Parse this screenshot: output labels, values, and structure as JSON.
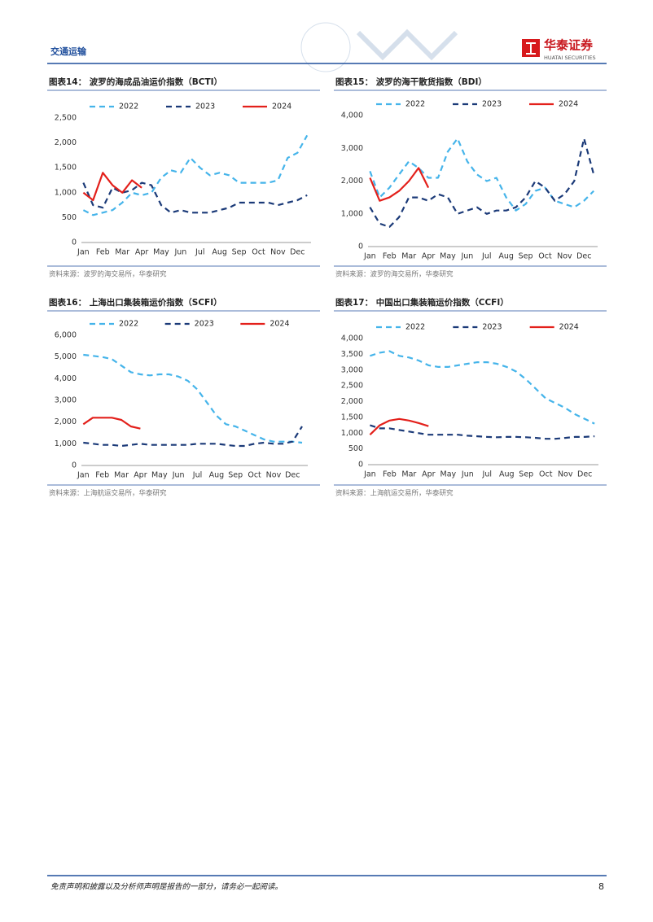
{
  "header": {
    "section": "交通运输",
    "brand": "华泰证券",
    "brand_en": "HUATAI SECURITIES"
  },
  "chart_data": [
    {
      "type": "line",
      "title": "图表14： 波罗的海成品油运价指数（BCTI）",
      "source": "资料来源：波罗的海交易所，华泰研究",
      "x": [
        0,
        0.5,
        1,
        1.5,
        2,
        2.5,
        3,
        3.5,
        4,
        4.5,
        5,
        5.5,
        6,
        6.5,
        7,
        7.5,
        8,
        8.5,
        9,
        9.5,
        10,
        10.5,
        11,
        11.5
      ],
      "xlim": [
        -0.1,
        11.7
      ],
      "xticks": [
        {
          "value": 0,
          "label": "Jan"
        },
        {
          "value": 1,
          "label": "Feb"
        },
        {
          "value": 2,
          "label": "Mar"
        },
        {
          "value": 3,
          "label": "Apr"
        },
        {
          "value": 4,
          "label": "May"
        },
        {
          "value": 5,
          "label": "Jun"
        },
        {
          "value": 6,
          "label": "Jul"
        },
        {
          "value": 7,
          "label": "Aug"
        },
        {
          "value": 8,
          "label": "Sep"
        },
        {
          "value": 9,
          "label": "Oct"
        },
        {
          "value": 10,
          "label": "Nov"
        },
        {
          "value": 11,
          "label": "Dec"
        }
      ],
      "ylim": [
        0,
        2500
      ],
      "yticks": [
        0,
        500,
        {
          "value": 1000,
          "label": "1,000"
        },
        {
          "value": 1500,
          "label": "1,500"
        },
        {
          "value": 2000,
          "label": "2,000"
        },
        {
          "value": 2500,
          "label": "2,500"
        }
      ],
      "series": [
        {
          "name": "2022",
          "color": "#45b4ea",
          "style": "dashed",
          "values": [
            650,
            550,
            600,
            650,
            800,
            1000,
            950,
            1000,
            1300,
            1450,
            1400,
            1700,
            1500,
            1350,
            1400,
            1350,
            1200,
            1200,
            1200,
            1200,
            1250,
            1700,
            1800,
            2150
          ]
        },
        {
          "name": "2023",
          "color": "#1b3a78",
          "style": "dashed",
          "values": [
            1200,
            750,
            700,
            1100,
            1000,
            1050,
            1200,
            1150,
            750,
            600,
            650,
            600,
            600,
            600,
            650,
            700,
            800,
            800,
            800,
            800,
            750,
            800,
            850,
            950
          ]
        },
        {
          "name": "2024",
          "color": "#e3201b",
          "style": "solid",
          "values": [
            1000,
            850,
            1400,
            1150,
            1000,
            1250,
            1100,
            null,
            null,
            null,
            null,
            null,
            null,
            null,
            null,
            null,
            null,
            null,
            null,
            null,
            null,
            null,
            null,
            null
          ]
        }
      ]
    },
    {
      "type": "line",
      "title": "图表15： 波罗的海干散货指数（BDI）",
      "source": "资料来源：波罗的海交易所，华泰研究",
      "x": [
        0,
        0.5,
        1,
        1.5,
        2,
        2.5,
        3,
        3.5,
        4,
        4.5,
        5,
        5.5,
        6,
        6.5,
        7,
        7.5,
        8,
        8.5,
        9,
        9.5,
        10,
        10.5,
        11,
        11.5
      ],
      "xlim": [
        -0.1,
        11.7
      ],
      "xticks": [
        {
          "value": 0,
          "label": "Jan"
        },
        {
          "value": 1,
          "label": "Feb"
        },
        {
          "value": 2,
          "label": "Mar"
        },
        {
          "value": 3,
          "label": "Apr"
        },
        {
          "value": 4,
          "label": "May"
        },
        {
          "value": 5,
          "label": "Jun"
        },
        {
          "value": 6,
          "label": "Jul"
        },
        {
          "value": 7,
          "label": "Aug"
        },
        {
          "value": 8,
          "label": "Sep"
        },
        {
          "value": 9,
          "label": "Oct"
        },
        {
          "value": 10,
          "label": "Nov"
        },
        {
          "value": 11,
          "label": "Dec"
        }
      ],
      "ylim": [
        0,
        4000
      ],
      "yticks": [
        0,
        {
          "value": 1000,
          "label": "1,000"
        },
        {
          "value": 2000,
          "label": "2,000"
        },
        {
          "value": 3000,
          "label": "3,000"
        },
        {
          "value": 4000,
          "label": "4,000"
        }
      ],
      "series": [
        {
          "name": "2022",
          "color": "#45b4ea",
          "style": "dashed",
          "values": [
            2300,
            1500,
            1800,
            2200,
            2600,
            2400,
            2100,
            2100,
            2900,
            3300,
            2600,
            2200,
            2000,
            2100,
            1500,
            1100,
            1300,
            1700,
            1800,
            1400,
            1300,
            1200,
            1400,
            1700
          ]
        },
        {
          "name": "2023",
          "color": "#1b3a78",
          "style": "dashed",
          "values": [
            1200,
            700,
            600,
            900,
            1500,
            1500,
            1400,
            1600,
            1500,
            1000,
            1100,
            1200,
            1000,
            1100,
            1100,
            1200,
            1500,
            2000,
            1800,
            1400,
            1600,
            2000,
            3300,
            2200
          ]
        },
        {
          "name": "2024",
          "color": "#e3201b",
          "style": "solid",
          "values": [
            2100,
            1400,
            1500,
            1700,
            2000,
            2400,
            1800,
            null,
            null,
            null,
            null,
            null,
            null,
            null,
            null,
            null,
            null,
            null,
            null,
            null,
            null,
            null,
            null,
            null
          ]
        }
      ]
    },
    {
      "type": "line",
      "title": "图表16： 上海出口集装箱运价指数（SCFI）",
      "source": "资料来源：上海航运交易所，华泰研究",
      "x": [
        0,
        0.5,
        1,
        1.5,
        2,
        2.5,
        3,
        3.5,
        4,
        4.5,
        5,
        5.5,
        6,
        6.5,
        7,
        7.5,
        8,
        8.5,
        9,
        9.5,
        10,
        10.5,
        11,
        11.5
      ],
      "xlim": [
        -0.1,
        11.8
      ],
      "xticks": [
        {
          "value": 0,
          "label": "Jan"
        },
        {
          "value": 1,
          "label": "Feb"
        },
        {
          "value": 2,
          "label": "Mar"
        },
        {
          "value": 3,
          "label": "Apr"
        },
        {
          "value": 4,
          "label": "May"
        },
        {
          "value": 5,
          "label": "Jun"
        },
        {
          "value": 6,
          "label": "Jul"
        },
        {
          "value": 7,
          "label": "Aug"
        },
        {
          "value": 8,
          "label": "Sep"
        },
        {
          "value": 9,
          "label": "Oct"
        },
        {
          "value": 10,
          "label": "Nov"
        },
        {
          "value": 11,
          "label": "Dec"
        }
      ],
      "ylim": [
        0,
        6000
      ],
      "yticks": [
        0,
        {
          "value": 1000,
          "label": "1,000"
        },
        {
          "value": 2000,
          "label": "2,000"
        },
        {
          "value": 3000,
          "label": "3,000"
        },
        {
          "value": 4000,
          "label": "4,000"
        },
        {
          "value": 5000,
          "label": "5,000"
        },
        {
          "value": 6000,
          "label": "6,000"
        }
      ],
      "series": [
        {
          "name": "2022",
          "color": "#45b4ea",
          "style": "dashed",
          "values": [
            5100,
            5050,
            5000,
            4900,
            4600,
            4300,
            4200,
            4150,
            4200,
            4200,
            4100,
            3900,
            3500,
            2900,
            2300,
            1900,
            1800,
            1600,
            1400,
            1200,
            1100,
            1100,
            1100,
            1050
          ]
        },
        {
          "name": "2023",
          "color": "#1b3a78",
          "style": "dashed",
          "values": [
            1050,
            1000,
            950,
            950,
            900,
            950,
            1000,
            950,
            950,
            950,
            950,
            950,
            1000,
            1000,
            1000,
            950,
            900,
            900,
            1000,
            1050,
            1000,
            1000,
            1100,
            1800
          ]
        },
        {
          "name": "2024",
          "color": "#e3201b",
          "style": "solid",
          "values": [
            1900,
            2200,
            2200,
            2200,
            2100,
            1800,
            1700,
            null,
            null,
            null,
            null,
            null,
            null,
            null,
            null,
            null,
            null,
            null,
            null,
            null,
            null,
            null,
            null,
            null
          ]
        }
      ]
    },
    {
      "type": "line",
      "title": "图表17： 中国出口集装箱运价指数（CCFI）",
      "source": "资料来源：上海航运交易所，华泰研究",
      "x": [
        0,
        0.5,
        1,
        1.5,
        2,
        2.5,
        3,
        3.5,
        4,
        4.5,
        5,
        5.5,
        6,
        6.5,
        7,
        7.5,
        8,
        8.5,
        9,
        9.5,
        10,
        10.5,
        11,
        11.5
      ],
      "xlim": [
        -0.1,
        11.7
      ],
      "xticks": [
        {
          "value": 0,
          "label": "Jan"
        },
        {
          "value": 1,
          "label": "Feb"
        },
        {
          "value": 2,
          "label": "Mar"
        },
        {
          "value": 3,
          "label": "Apr"
        },
        {
          "value": 4,
          "label": "May"
        },
        {
          "value": 5,
          "label": "Jun"
        },
        {
          "value": 6,
          "label": "Jul"
        },
        {
          "value": 7,
          "label": "Aug"
        },
        {
          "value": 8,
          "label": "Sep"
        },
        {
          "value": 9,
          "label": "Oct"
        },
        {
          "value": 10,
          "label": "Nov"
        },
        {
          "value": 11,
          "label": "Dec"
        }
      ],
      "ylim": [
        0,
        4000
      ],
      "yticks": [
        0,
        500,
        {
          "value": 1000,
          "label": "1,000"
        },
        {
          "value": 1500,
          "label": "1,500"
        },
        {
          "value": 2000,
          "label": "2,000"
        },
        {
          "value": 2500,
          "label": "2,500"
        },
        {
          "value": 3000,
          "label": "3,000"
        },
        {
          "value": 3500,
          "label": "3,500"
        },
        {
          "value": 4000,
          "label": "4,000"
        }
      ],
      "series": [
        {
          "name": "2022",
          "color": "#45b4ea",
          "style": "dashed",
          "values": [
            3450,
            3550,
            3600,
            3450,
            3400,
            3300,
            3150,
            3100,
            3100,
            3150,
            3200,
            3250,
            3250,
            3200,
            3100,
            2950,
            2700,
            2400,
            2100,
            1950,
            1800,
            1600,
            1450,
            1300
          ]
        },
        {
          "name": "2023",
          "color": "#1b3a78",
          "style": "dashed",
          "values": [
            1250,
            1150,
            1150,
            1100,
            1050,
            1000,
            950,
            950,
            950,
            950,
            920,
            900,
            880,
            870,
            880,
            880,
            870,
            850,
            820,
            820,
            850,
            880,
            880,
            900
          ]
        },
        {
          "name": "2024",
          "color": "#e3201b",
          "style": "solid",
          "values": [
            950,
            1250,
            1400,
            1450,
            1400,
            1320,
            1220,
            null,
            null,
            null,
            null,
            null,
            null,
            null,
            null,
            null,
            null,
            null,
            null,
            null,
            null,
            null,
            null,
            null
          ]
        }
      ]
    }
  ],
  "footer": {
    "disclaimer": "免责声明和披露以及分析师声明是报告的一部分，请务必一起阅读。",
    "page": "8"
  }
}
